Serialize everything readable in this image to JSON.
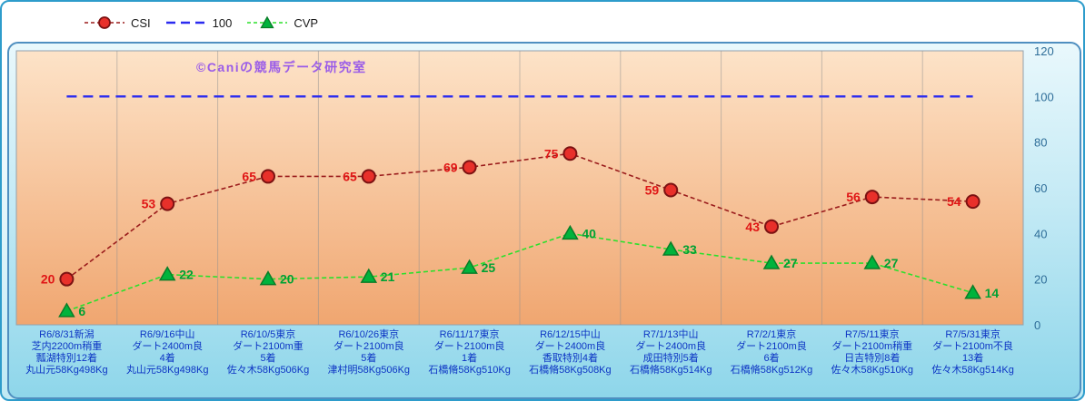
{
  "watermark": "©Caniの競馬データ研究室",
  "legend": {
    "items": [
      {
        "id": "csi",
        "label": "CSI"
      },
      {
        "id": "hundred",
        "label": "100"
      },
      {
        "id": "cvp",
        "label": "CVP"
      }
    ]
  },
  "chart_data": {
    "type": "line",
    "title": "",
    "xlabel": "",
    "ylabel": "",
    "ylim": [
      0,
      120
    ],
    "yticks": [
      0,
      20,
      40,
      60,
      80,
      100,
      120
    ],
    "legend_position": "top-left",
    "grid": "vertical",
    "categories": [
      [
        "R6/8/31新潟",
        "芝内2200m稍重",
        "瓢湖特別12着",
        "丸山元58Kg498Kg"
      ],
      [
        "R6/9/16中山",
        "ダート2400m良",
        "4着",
        "丸山元58Kg498Kg"
      ],
      [
        "R6/10/5東京",
        "ダート2100m重",
        "5着",
        "佐々木58Kg506Kg"
      ],
      [
        "R6/10/26東京",
        "ダート2100m良",
        "5着",
        "津村明58Kg506Kg"
      ],
      [
        "R6/11/17東京",
        "ダート2100m良",
        "1着",
        "石橋脩58Kg510Kg"
      ],
      [
        "R6/12/15中山",
        "ダート2400m良",
        "香取特別4着",
        "石橋脩58Kg508Kg"
      ],
      [
        "R7/1/13中山",
        "ダート2400m良",
        "成田特別5着",
        "石橋脩58Kg514Kg"
      ],
      [
        "R7/2/1東京",
        "ダート2100m良",
        "6着",
        "石橋脩58Kg512Kg"
      ],
      [
        "R7/5/11東京",
        "ダート2100m稍重",
        "日吉特別8着",
        "佐々木58Kg510Kg"
      ],
      [
        "R7/5/31東京",
        "ダート2100m不良",
        "13着",
        "佐々木58Kg514Kg"
      ]
    ],
    "series": [
      {
        "name": "100",
        "type": "constant",
        "value": 100,
        "color": "#2b2bf0"
      },
      {
        "name": "CVP",
        "type": "line",
        "marker": "triangle",
        "label_side": "right",
        "color": "#2ce02c",
        "marker_fill": "#00b33c",
        "marker_edge": "#0a7d28",
        "label_color": "#00a133",
        "values": [
          6,
          22,
          20,
          21,
          25,
          40,
          33,
          27,
          27,
          14
        ]
      },
      {
        "name": "CSI",
        "type": "line",
        "marker": "circle",
        "label_side": "left",
        "color": "#9b1c1c",
        "marker_fill": "#e8302a",
        "marker_edge": "#7c1212",
        "label_color": "#e01616",
        "values": [
          20,
          53,
          65,
          65,
          69,
          75,
          59,
          43,
          56,
          54
        ]
      }
    ],
    "colors": {
      "plot_bg_top": "#fde3c8",
      "plot_bg_bottom": "#f0a670",
      "grid": "#8f8f8f",
      "axis_labels": "#2f6e99",
      "category_labels": "#0d35c4",
      "watermark": "#9a5ce8"
    }
  }
}
